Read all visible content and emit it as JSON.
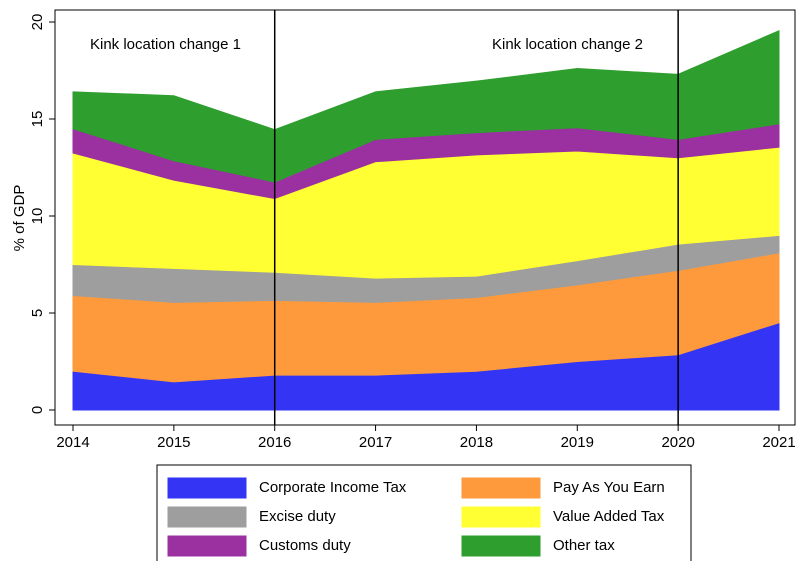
{
  "chart_data": {
    "type": "stacked_area",
    "y_label": "% of GDP",
    "x": [
      2014,
      2015,
      2016,
      2017,
      2018,
      2019,
      2020,
      2021
    ],
    "xlim": [
      2014,
      2021
    ],
    "xticks": [
      2014,
      2015,
      2016,
      2017,
      2018,
      2019,
      2020,
      2021
    ],
    "ylim": [
      0,
      20
    ],
    "yticks": [
      0,
      5,
      10,
      15,
      20
    ],
    "series": [
      {
        "name": "Corporate Income Tax",
        "color": "#3434f5",
        "values": [
          2.0,
          1.45,
          1.8,
          1.8,
          2.0,
          2.5,
          2.85,
          4.5
        ]
      },
      {
        "name": "Pay As You Earn",
        "color": "#ff9a3c",
        "values": [
          3.9,
          4.1,
          3.85,
          3.75,
          3.8,
          3.95,
          4.35,
          3.6
        ]
      },
      {
        "name": "Excise duty",
        "color": "#9e9e9e",
        "values": [
          1.6,
          1.75,
          1.45,
          1.25,
          1.1,
          1.25,
          1.35,
          0.9
        ]
      },
      {
        "name": "Value Added Tax",
        "color": "#ffff33",
        "values": [
          5.75,
          4.55,
          3.8,
          6.0,
          6.25,
          5.65,
          4.45,
          4.55
        ]
      },
      {
        "name": "Customs duty",
        "color": "#9b30a0",
        "values": [
          1.25,
          1.0,
          0.85,
          1.15,
          1.15,
          1.2,
          0.95,
          1.2
        ]
      },
      {
        "name": "Other tax",
        "color": "#2e9e2e",
        "values": [
          1.9,
          3.35,
          2.7,
          2.45,
          2.65,
          3.05,
          3.35,
          4.8
        ]
      }
    ],
    "vlines": [
      2016,
      2020
    ],
    "annotations": [
      "Kink location change 1",
      "Kink location change 2"
    ]
  }
}
